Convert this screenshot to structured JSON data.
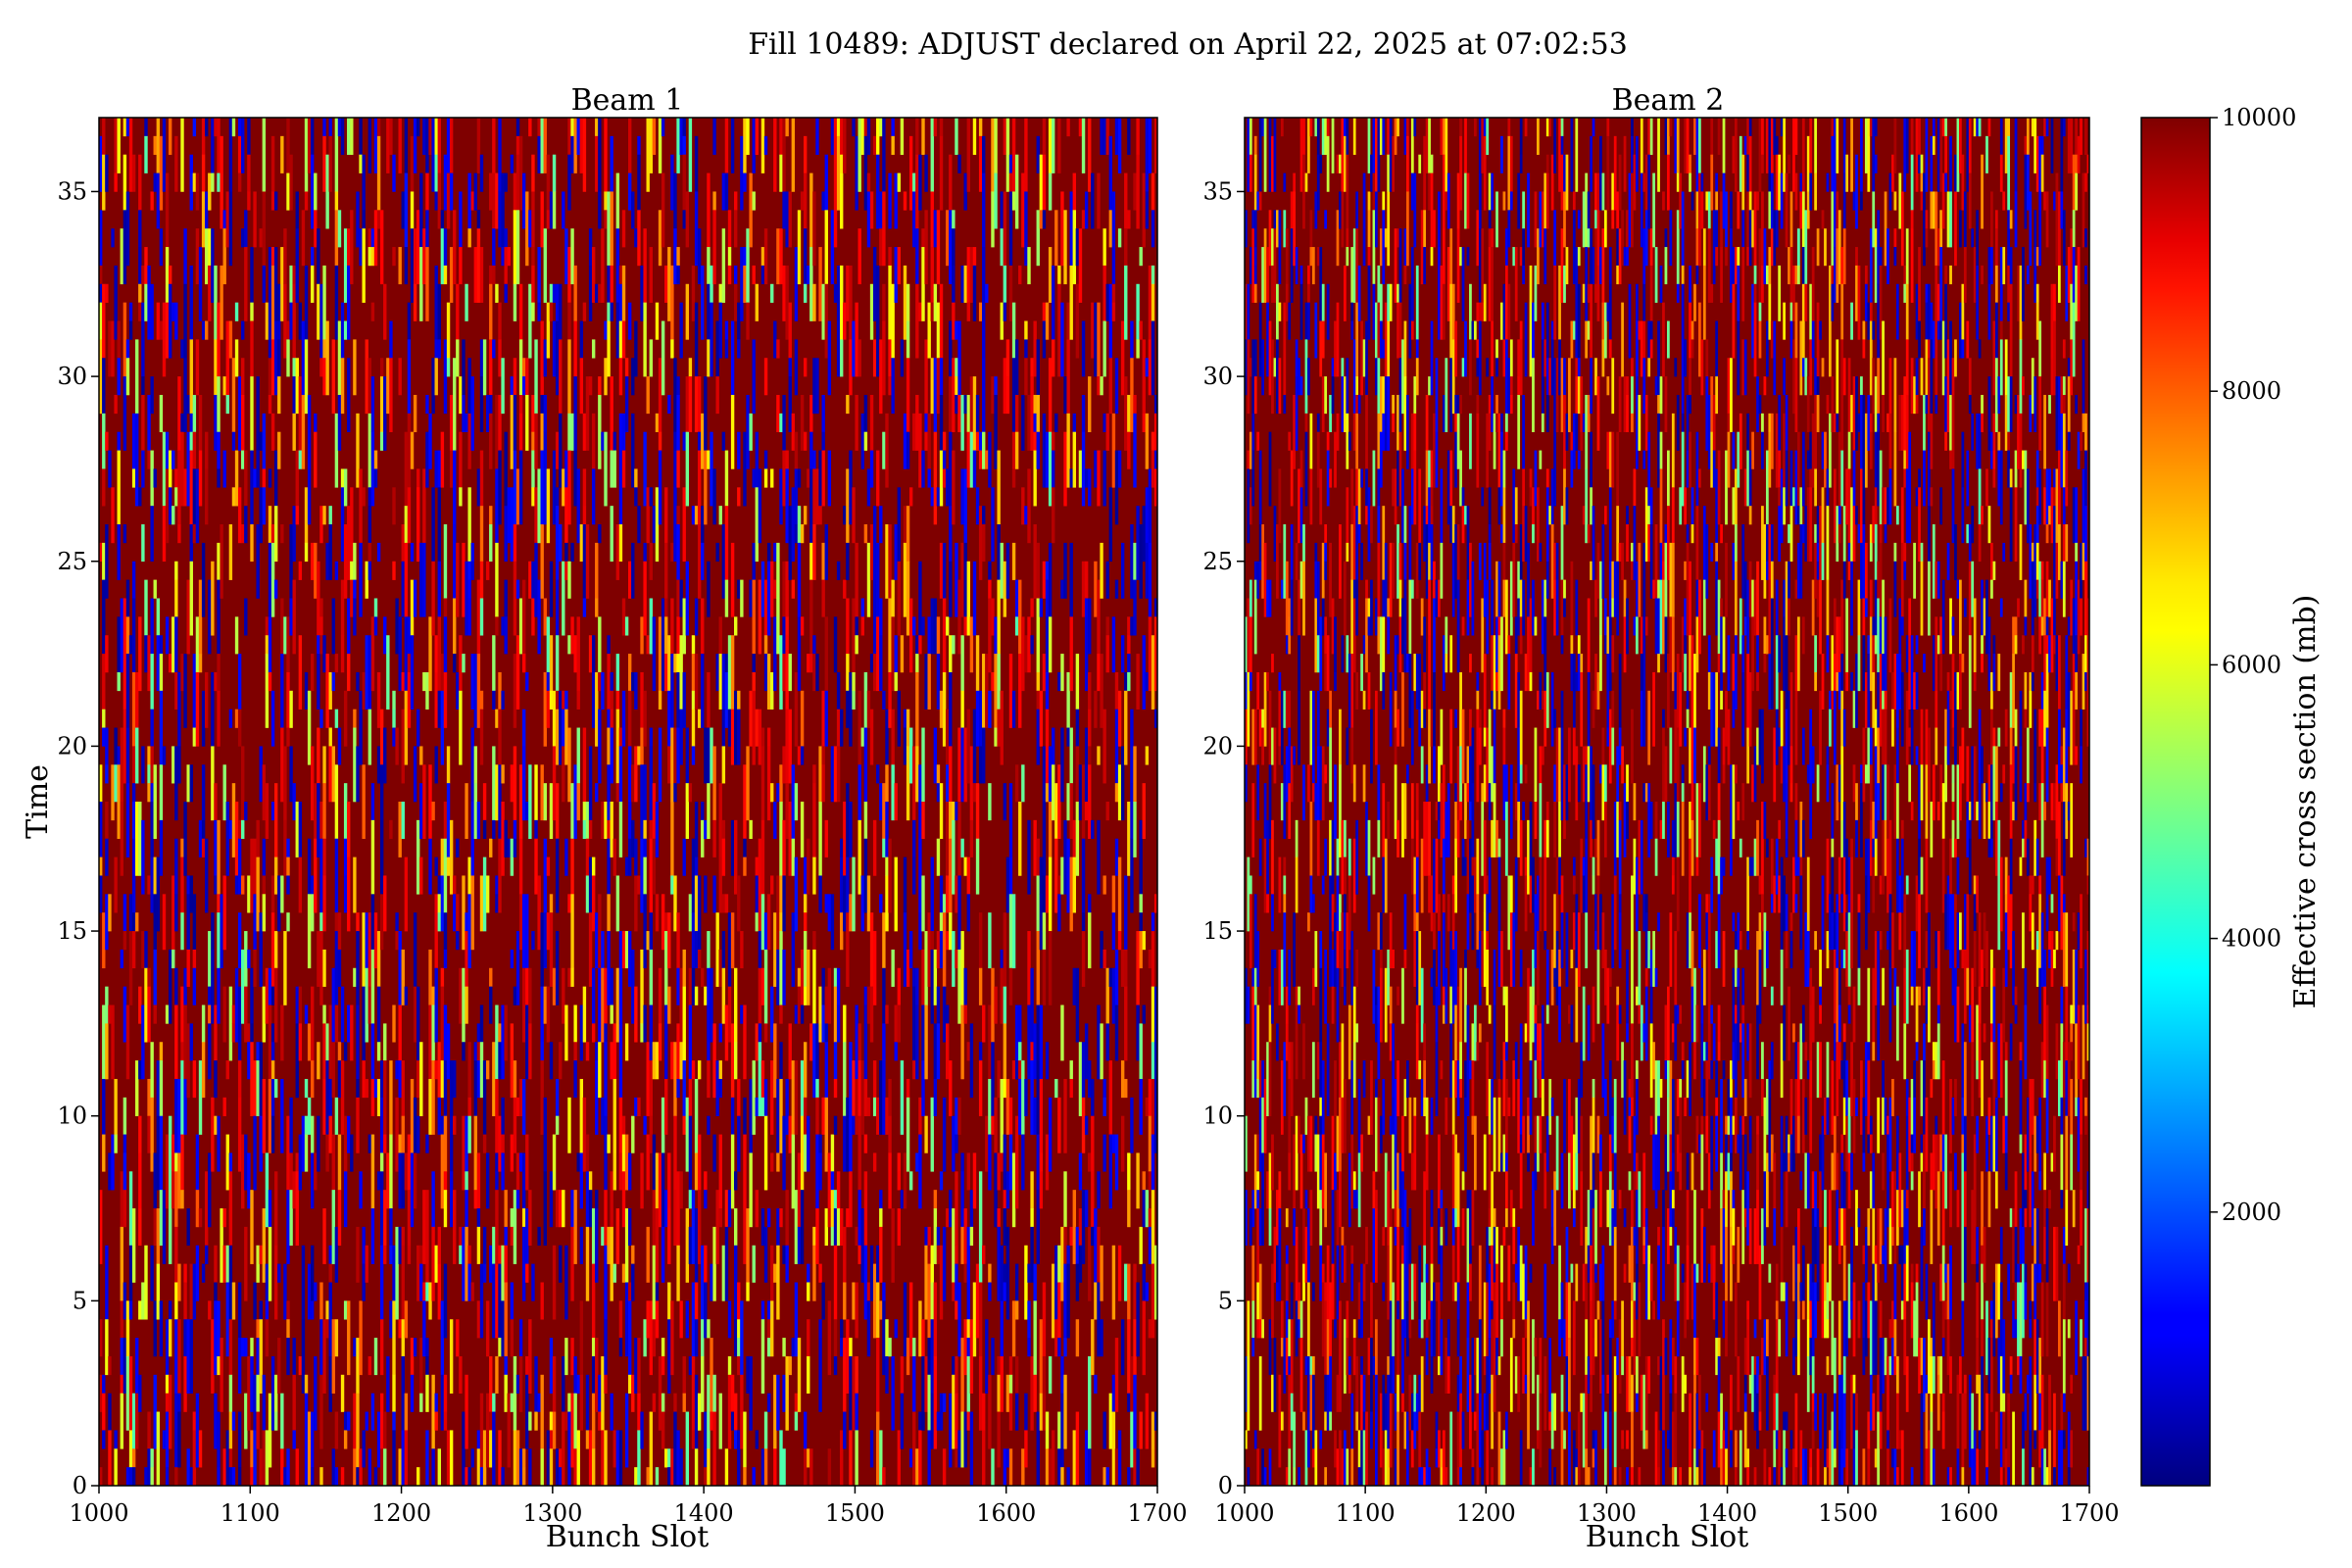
{
  "chart_data": {
    "type": "heatmap",
    "title": "Fill 10489: ADJUST declared on April 22, 2025 at 07:02:53",
    "colormap": "jet",
    "colorbar": {
      "label": "Effective cross section (mb)",
      "range": [
        0,
        10000
      ],
      "ticks": [
        2000,
        4000,
        6000,
        8000,
        10000
      ],
      "tick_labels": [
        "2000",
        "4000",
        "6000",
        "8000",
        "10000"
      ]
    },
    "panels": [
      {
        "title": "Beam 1",
        "xlabel": "Bunch Slot",
        "ylabel": "Time",
        "xlim": [
          1000,
          1700
        ],
        "ylim": [
          0,
          37
        ],
        "xticks": [
          1000,
          1100,
          1200,
          1300,
          1400,
          1500,
          1600,
          1700
        ],
        "xtick_labels": [
          "1000",
          "1100",
          "1200",
          "1300",
          "1400",
          "1500",
          "1600",
          "1700"
        ],
        "yticks": [
          0,
          5,
          10,
          15,
          20,
          25,
          30,
          35
        ],
        "ytick_labels": [
          "0",
          "5",
          "10",
          "15",
          "20",
          "25",
          "30",
          "35"
        ],
        "dominant_value": 10000,
        "texture": "noisy vertical streaks"
      },
      {
        "title": "Beam 2",
        "xlabel": "Bunch Slot",
        "ylabel": "",
        "xlim": [
          1000,
          1700
        ],
        "ylim": [
          0,
          37
        ],
        "xticks": [
          1000,
          1100,
          1200,
          1300,
          1400,
          1500,
          1600,
          1700
        ],
        "xtick_labels": [
          "1000",
          "1100",
          "1200",
          "1300",
          "1400",
          "1500",
          "1600",
          "1700"
        ],
        "yticks": [
          0,
          5,
          10,
          15,
          20,
          25,
          30,
          35
        ],
        "ytick_labels": [
          "0",
          "5",
          "10",
          "15",
          "20",
          "25",
          "30",
          "35"
        ],
        "dominant_value": 10000,
        "texture": "noisy vertical streaks"
      }
    ]
  }
}
